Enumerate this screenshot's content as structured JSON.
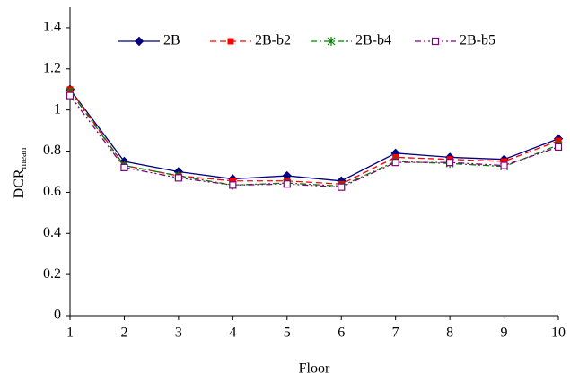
{
  "chart_data": {
    "type": "line",
    "x_label": "Floor",
    "y_label": {
      "main": "DCR",
      "sub": "mean"
    },
    "x": [
      1,
      2,
      3,
      4,
      5,
      6,
      7,
      8,
      9,
      10
    ],
    "xlim": [
      1,
      10
    ],
    "xticks": [
      1,
      2,
      3,
      4,
      5,
      6,
      7,
      8,
      9,
      10
    ],
    "ylim": [
      0,
      1.5
    ],
    "yticks": [
      0,
      0.2,
      0.4,
      0.6,
      0.8,
      1,
      1.2,
      1.4
    ],
    "legend": "top",
    "series": [
      {
        "name": "2B",
        "color": "#000080",
        "marker": "diamond",
        "dash": "solid",
        "values": [
          1.1,
          0.75,
          0.7,
          0.665,
          0.68,
          0.655,
          0.79,
          0.77,
          0.76,
          0.86
        ]
      },
      {
        "name": "2B-b2",
        "color": "#ff0000",
        "marker": "square",
        "dash": "dashed",
        "values": [
          1.1,
          0.73,
          0.68,
          0.655,
          0.655,
          0.64,
          0.77,
          0.76,
          0.75,
          0.85
        ]
      },
      {
        "name": "2B-b4",
        "color": "#008000",
        "marker": "asterisk",
        "dash": "dashdot",
        "values": [
          1.09,
          0.73,
          0.68,
          0.635,
          0.645,
          0.63,
          0.75,
          0.74,
          0.725,
          0.83
        ]
      },
      {
        "name": "2B-b5",
        "color": "#800080",
        "marker": "opensquare",
        "dash": "dashdotdot",
        "values": [
          1.07,
          0.72,
          0.67,
          0.635,
          0.64,
          0.625,
          0.745,
          0.745,
          0.73,
          0.82
        ]
      }
    ]
  }
}
